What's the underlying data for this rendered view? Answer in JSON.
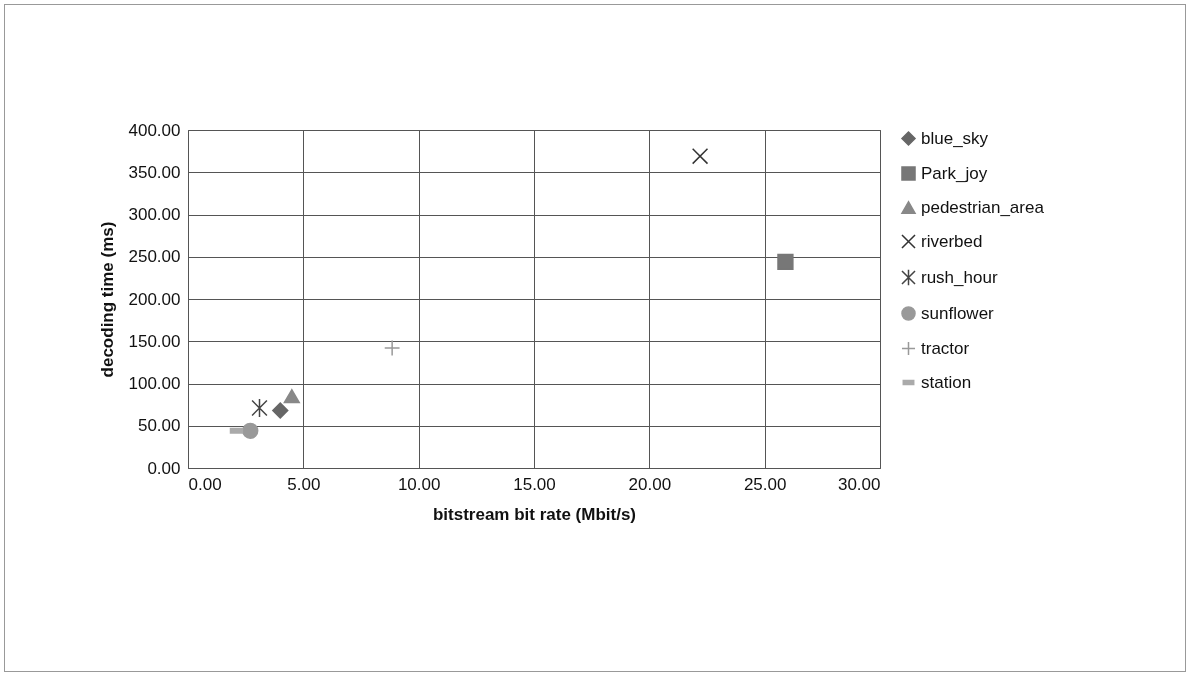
{
  "chart_data": {
    "type": "scatter",
    "xlabel": "bitstream bit rate (Mbit/s)",
    "ylabel": "decoding time (ms)",
    "xlim": [
      0,
      30
    ],
    "xticks": [
      {
        "value": 0,
        "label": "0.00"
      },
      {
        "value": 5,
        "label": "5.00"
      },
      {
        "value": 10,
        "label": "10.00"
      },
      {
        "value": 15,
        "label": "15.00"
      },
      {
        "value": 20,
        "label": "20.00"
      },
      {
        "value": 25,
        "label": "25.00"
      },
      {
        "value": 30,
        "label": "30.00"
      }
    ],
    "ylim": [
      0,
      400
    ],
    "yticks": [
      {
        "value": 0,
        "label": "0.00"
      },
      {
        "value": 50,
        "label": "50.00"
      },
      {
        "value": 100,
        "label": "100.00"
      },
      {
        "value": 150,
        "label": "150.00"
      },
      {
        "value": 200,
        "label": "200.00"
      },
      {
        "value": 250,
        "label": "250.00"
      },
      {
        "value": 300,
        "label": "300.00"
      },
      {
        "value": 350,
        "label": "350.00"
      },
      {
        "value": 400,
        "label": "400.00"
      }
    ],
    "grid": true,
    "legend": "right",
    "series": [
      {
        "name": "blue_sky",
        "color": "#666666",
        "marker": "diamond",
        "x": [
          4.0
        ],
        "values": [
          68
        ]
      },
      {
        "name": "Park_joy",
        "color": "#777777",
        "marker": "square",
        "x": [
          25.9
        ],
        "values": [
          244
        ]
      },
      {
        "name": "pedestrian_area",
        "color": "#888888",
        "marker": "triangle",
        "x": [
          4.5
        ],
        "values": [
          85
        ]
      },
      {
        "name": "riverbed",
        "color": "#333333",
        "marker": "cross",
        "x": [
          22.2
        ],
        "values": [
          369
        ]
      },
      {
        "name": "rush_hour",
        "color": "#444444",
        "marker": "cross",
        "x": [
          3.1
        ],
        "values": [
          71
        ]
      },
      {
        "name": "sunflower",
        "color": "#999999",
        "marker": "circle",
        "x": [
          2.7
        ],
        "values": [
          44
        ]
      },
      {
        "name": "tractor",
        "color": "#999999",
        "marker": "plus",
        "x": [
          8.85
        ],
        "values": [
          142
        ]
      },
      {
        "name": "station",
        "color": "#aaaaaa",
        "marker": "square",
        "x": [
          2.1
        ],
        "values": [
          44
        ]
      }
    ]
  }
}
